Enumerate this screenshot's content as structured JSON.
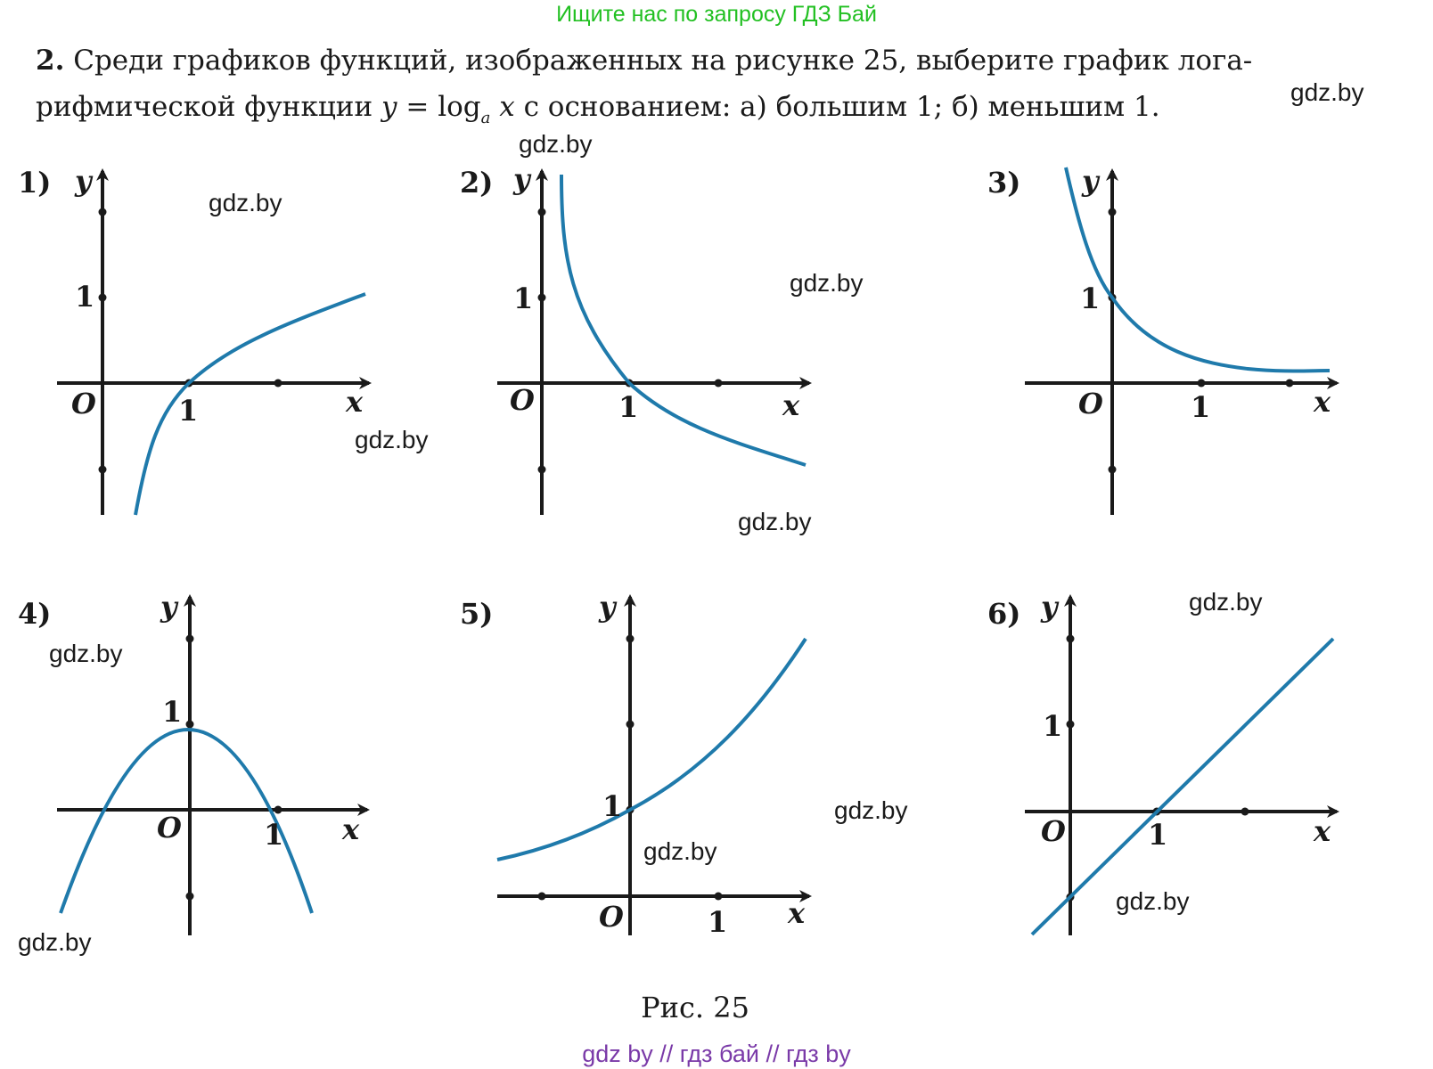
{
  "banner": "Ищите нас по запросу ГДЗ Бай",
  "problem": {
    "number": "2.",
    "line1": "Среди графиков функций, изображенных на рисунке 25, выберите график лога-",
    "line2_a": "рифмической функции",
    "formula_y": "y",
    "formula_eq": "=",
    "formula_log": "log",
    "formula_base": "a",
    "formula_x": "x",
    "line2_b": "с основанием: а) большим 1;  б) меньшим 1."
  },
  "watermark": "gdz.by",
  "axis": {
    "x": "x",
    "y": "y",
    "origin": "O",
    "one": "1"
  },
  "graphs": [
    {
      "label": "1)",
      "description": "increasing logarithmic curve, base > 1"
    },
    {
      "label": "2)",
      "description": "decreasing logarithmic curve, base < 1"
    },
    {
      "label": "3)",
      "description": "decreasing exponential curve"
    },
    {
      "label": "4)",
      "description": "downward parabola"
    },
    {
      "label": "5)",
      "description": "increasing exponential curve"
    },
    {
      "label": "6)",
      "description": "straight line"
    }
  ],
  "caption": "Рис. 25",
  "footer": "gdz by  //  гдз бай  //  гдз by",
  "colors": {
    "curve": "#1f7aab",
    "axis": "#1a1a1a",
    "banner": "#22c022",
    "footer": "#7a3aa8"
  }
}
